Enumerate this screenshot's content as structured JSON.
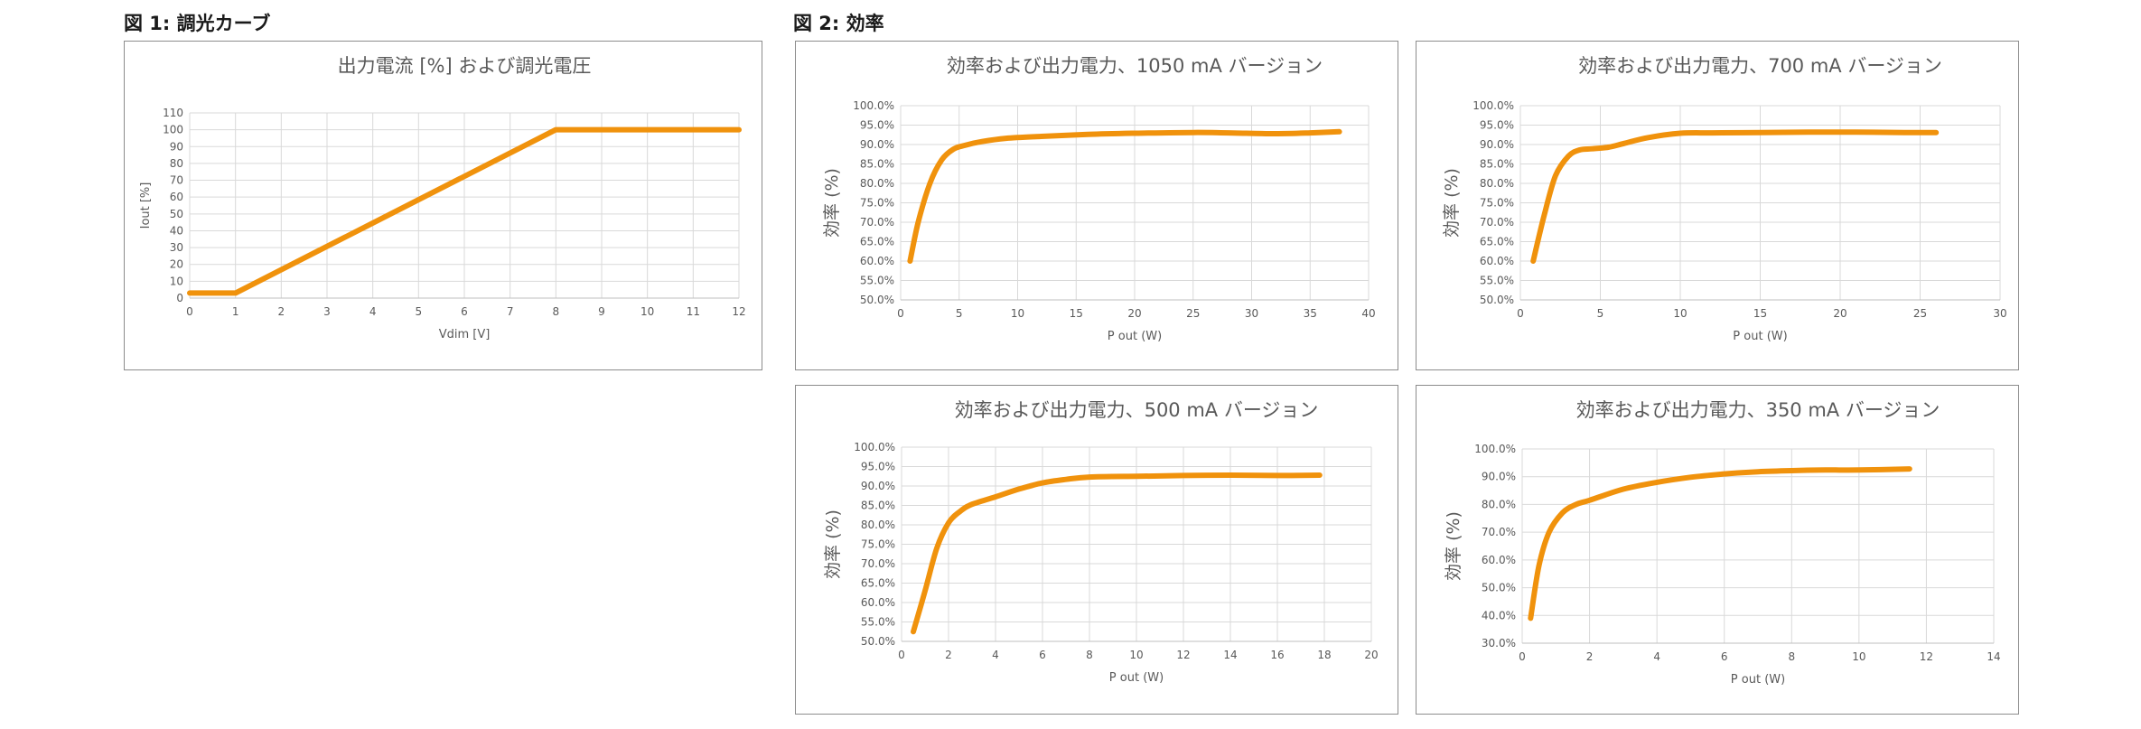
{
  "captions": {
    "fig1": "図 1: 調光カーブ",
    "fig2": "図 2: 効率"
  },
  "colors": {
    "series": "#F0920C"
  },
  "chart_data": [
    {
      "id": "dimming",
      "type": "line",
      "title": "出力電流 [%] および調光電圧",
      "xlabel": "Vdim [V]",
      "ylabel": "Iout [%]",
      "ylabel_style": "small",
      "xlim": [
        0,
        12
      ],
      "ylim": [
        0,
        110
      ],
      "xticks": [
        0,
        1,
        2,
        3,
        4,
        5,
        6,
        7,
        8,
        9,
        10,
        11,
        12
      ],
      "xtick_labels": [
        "0",
        "1",
        "2",
        "3",
        "4",
        "5",
        "6",
        "7",
        "8",
        "9",
        "10",
        "11",
        "12"
      ],
      "yticks": [
        0,
        10,
        20,
        30,
        40,
        50,
        60,
        70,
        80,
        90,
        100,
        110
      ],
      "ytick_labels": [
        "0",
        "10",
        "20",
        "30",
        "40",
        "50",
        "60",
        "70",
        "80",
        "90",
        "100",
        "110"
      ],
      "grid": true,
      "series": [
        {
          "x": [
            0,
            1,
            8,
            12
          ],
          "y": [
            3,
            3,
            100,
            100
          ]
        }
      ]
    },
    {
      "id": "eff1050",
      "type": "line",
      "title": "効率および出力電力、1050 mA バージョン",
      "xlabel": "P out (W)",
      "ylabel": "効率 (%)",
      "ylabel_style": "big",
      "xlim": [
        0,
        40
      ],
      "ylim": [
        50,
        100
      ],
      "xticks": [
        0,
        5,
        10,
        15,
        20,
        25,
        30,
        35,
        40
      ],
      "xtick_labels": [
        "0",
        "5",
        "10",
        "15",
        "20",
        "25",
        "30",
        "35",
        "40"
      ],
      "yticks": [
        50,
        55,
        60,
        65,
        70,
        75,
        80,
        85,
        90,
        95,
        100
      ],
      "ytick_labels": [
        "50.0%",
        "55.0%",
        "60.0%",
        "65.0%",
        "70.0%",
        "75.0%",
        "80.0%",
        "85.0%",
        "90.0%",
        "95.0%",
        "100.0%"
      ],
      "grid": true,
      "series": [
        {
          "x": [
            0.8,
            1.5,
            2.5,
            3.5,
            4.5,
            5.5,
            7,
            9,
            12,
            16,
            20,
            25,
            28,
            32,
            35,
            37.5
          ],
          "y": [
            60,
            70,
            80,
            86,
            88.8,
            89.8,
            90.8,
            91.6,
            92.1,
            92.6,
            92.9,
            93.1,
            93.0,
            92.8,
            93.0,
            93.3
          ]
        }
      ]
    },
    {
      "id": "eff700",
      "type": "line",
      "title": "効率および出力電力、700 mA バージョン",
      "xlabel": "P out (W)",
      "ylabel": "効率 (%)",
      "ylabel_style": "big",
      "xlim": [
        0,
        30
      ],
      "ylim": [
        50,
        100
      ],
      "xticks": [
        0,
        5,
        10,
        15,
        20,
        25,
        30
      ],
      "xtick_labels": [
        "0",
        "5",
        "10",
        "15",
        "20",
        "25",
        "30"
      ],
      "yticks": [
        50,
        55,
        60,
        65,
        70,
        75,
        80,
        85,
        90,
        95,
        100
      ],
      "ytick_labels": [
        "50.0%",
        "55.0%",
        "60.0%",
        "65.0%",
        "70.0%",
        "75.0%",
        "80.0%",
        "85.0%",
        "90.0%",
        "95.0%",
        "100.0%"
      ],
      "grid": true,
      "series": [
        {
          "x": [
            0.8,
            1.5,
            2.2,
            3,
            3.7,
            4.5,
            5.5,
            6.5,
            8,
            10,
            12,
            15,
            18,
            21,
            24,
            26
          ],
          "y": [
            60,
            72,
            82,
            87,
            88.6,
            88.9,
            89.3,
            90.3,
            91.8,
            92.9,
            93.0,
            93.1,
            93.2,
            93.2,
            93.1,
            93.1
          ]
        }
      ]
    },
    {
      "id": "eff500",
      "type": "line",
      "title": "効率および出力電力、500 mA バージョン",
      "xlabel": "P out (W)",
      "ylabel": "効率 (%)",
      "ylabel_style": "big",
      "xlim": [
        0,
        20
      ],
      "ylim": [
        50,
        100
      ],
      "xticks": [
        0,
        2,
        4,
        6,
        8,
        10,
        12,
        14,
        16,
        18,
        20
      ],
      "xtick_labels": [
        "0",
        "2",
        "4",
        "6",
        "8",
        "10",
        "12",
        "14",
        "16",
        "18",
        "20"
      ],
      "yticks": [
        50,
        55,
        60,
        65,
        70,
        75,
        80,
        85,
        90,
        95,
        100
      ],
      "ytick_labels": [
        "50.0%",
        "55.0%",
        "60.0%",
        "65.0%",
        "70.0%",
        "75.0%",
        "80.0%",
        "85.0%",
        "90.0%",
        "95.0%",
        "100.0%"
      ],
      "grid": true,
      "series": [
        {
          "x": [
            0.5,
            1,
            1.5,
            2,
            2.5,
            3,
            4,
            5,
            6,
            7,
            8,
            10,
            12,
            14,
            16,
            17.8
          ],
          "y": [
            52.5,
            63,
            74,
            80.5,
            83.5,
            85.3,
            87.2,
            89.2,
            90.8,
            91.7,
            92.3,
            92.5,
            92.7,
            92.8,
            92.7,
            92.8
          ]
        }
      ]
    },
    {
      "id": "eff350",
      "type": "line",
      "title": "効率および出力電力、350 mA バージョン",
      "xlabel": "P out (W)",
      "ylabel": "効率 (%)",
      "ylabel_style": "big",
      "xlim": [
        0,
        14
      ],
      "ylim": [
        30,
        100
      ],
      "xticks": [
        0,
        2,
        4,
        6,
        8,
        10,
        12,
        14
      ],
      "xtick_labels": [
        "0",
        "2",
        "4",
        "6",
        "8",
        "10",
        "12",
        "14"
      ],
      "yticks": [
        30,
        40,
        50,
        60,
        70,
        80,
        90,
        100
      ],
      "ytick_labels": [
        "30.0%",
        "40.0%",
        "50.0%",
        "60.0%",
        "70.0%",
        "80.0%",
        "90.0%",
        "100.0%"
      ],
      "grid": true,
      "series": [
        {
          "x": [
            0.25,
            0.5,
            0.8,
            1.2,
            1.6,
            2,
            3,
            4,
            5,
            6,
            7,
            8,
            9,
            10,
            11.5
          ],
          "y": [
            39,
            58,
            70,
            77,
            80,
            81.5,
            85.5,
            88,
            89.8,
            91,
            91.8,
            92.2,
            92.4,
            92.4,
            92.8
          ]
        }
      ]
    }
  ]
}
